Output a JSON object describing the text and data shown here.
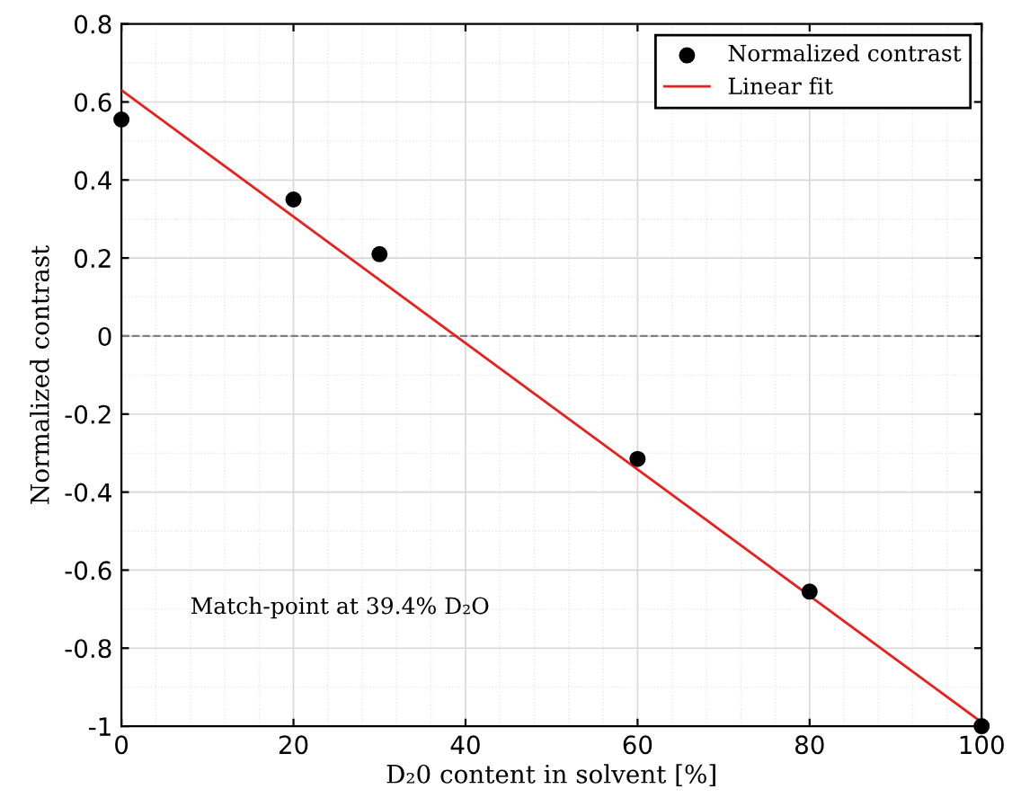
{
  "chart_data": {
    "type": "scatter",
    "xlabel": "D₂0 content in solvent [%]",
    "ylabel": "Normalized contrast",
    "series": [
      {
        "name": "Normalized contrast",
        "color": "#000000",
        "marker": "circle",
        "x": [
          0,
          20,
          30,
          60,
          80,
          100
        ],
        "values": [
          0.555,
          0.35,
          0.21,
          -0.315,
          -0.655,
          -1.0
        ]
      },
      {
        "name": "Linear fit",
        "type": "line",
        "color": "#e8211f",
        "marker": "none",
        "line_style": "solid",
        "x": [
          0,
          100
        ],
        "values": [
          0.63,
          -0.99
        ]
      }
    ],
    "xlim": [
      0,
      100
    ],
    "ylim": [
      -1,
      0.8
    ],
    "xticks": [
      0,
      20,
      40,
      60,
      80,
      100
    ],
    "yticks": [
      -1,
      -0.8,
      -0.6,
      -0.4,
      -0.2,
      0,
      0.2,
      0.4,
      0.6,
      0.8
    ],
    "ref_lines": [
      {
        "axis": "y",
        "value": 0,
        "color": "#808080",
        "line_style": "dashed"
      }
    ],
    "annotations": [
      "Match-point at 39.4% D₂O"
    ],
    "grid": true,
    "legend": "top right"
  }
}
